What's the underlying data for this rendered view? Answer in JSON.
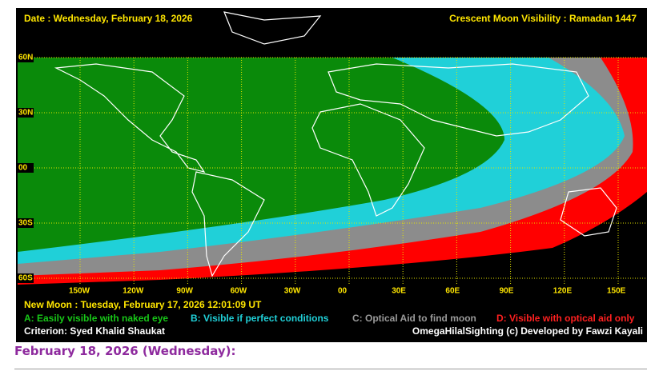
{
  "header": {
    "date": "Date : Wednesday, February 18, 2026",
    "title": "Crescent Moon Visibility : Ramadan  1447"
  },
  "lat_labels": [
    "60N",
    "30N",
    "00",
    "30S",
    "60S"
  ],
  "lon_labels": [
    "150W",
    "120W",
    "90W",
    "60W",
    "30W",
    "00",
    "30E",
    "60E",
    "90E",
    "120E",
    "150E"
  ],
  "new_moon": "New Moon : Tuesday, February 17, 2026  12:01:09  UT",
  "legend": [
    "A: Easily visible with naked eye",
    "B: Visible if perfect conditions",
    "C: Optical Aid to find moon",
    "D: Visible with optical aid only"
  ],
  "criterion": "Criterion: Syed Khalid Shaukat",
  "credit": "OmegaHilalSighting  (c)  Developed by Fawzi Kayali",
  "caption": "February 18, 2026 (Wednesday):"
}
